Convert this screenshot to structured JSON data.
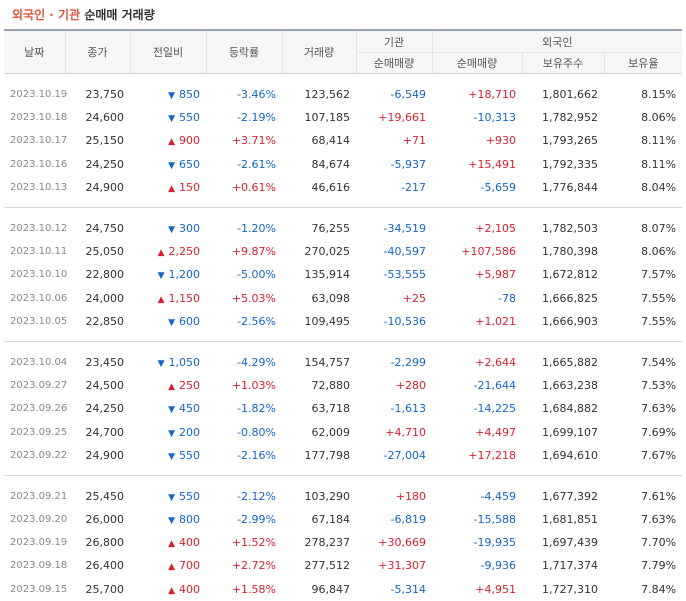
{
  "title": {
    "highlight": "외국인 · 기관",
    "rest": "순매매 거래량"
  },
  "columns": {
    "date": "날짜",
    "close": "종가",
    "change": "전일비",
    "rate": "등락률",
    "volume": "거래량",
    "institution": "기관",
    "foreign": "외국인",
    "inst_net": "순매매량",
    "foreign_net": "순매매량",
    "foreign_shares": "보유주수",
    "foreign_ratio": "보유율"
  },
  "colors": {
    "up": "#d8212e",
    "down": "#1366c9",
    "date": "#888888"
  },
  "groups": [
    [
      {
        "date": "2023.10.19",
        "close": "23,750",
        "dir": "down",
        "change": "850",
        "rate": "-3.46%",
        "volume": "123,562",
        "inst": "-6,549",
        "foreign": "+18,710",
        "shares": "1,801,662",
        "ratio": "8.15%"
      },
      {
        "date": "2023.10.18",
        "close": "24,600",
        "dir": "down",
        "change": "550",
        "rate": "-2.19%",
        "volume": "107,185",
        "inst": "+19,661",
        "foreign": "-10,313",
        "shares": "1,782,952",
        "ratio": "8.06%"
      },
      {
        "date": "2023.10.17",
        "close": "25,150",
        "dir": "up",
        "change": "900",
        "rate": "+3.71%",
        "volume": "68,414",
        "inst": "+71",
        "foreign": "+930",
        "shares": "1,793,265",
        "ratio": "8.11%"
      },
      {
        "date": "2023.10.16",
        "close": "24,250",
        "dir": "down",
        "change": "650",
        "rate": "-2.61%",
        "volume": "84,674",
        "inst": "-5,937",
        "foreign": "+15,491",
        "shares": "1,792,335",
        "ratio": "8.11%"
      },
      {
        "date": "2023.10.13",
        "close": "24,900",
        "dir": "up",
        "change": "150",
        "rate": "+0.61%",
        "volume": "46,616",
        "inst": "-217",
        "foreign": "-5,659",
        "shares": "1,776,844",
        "ratio": "8.04%"
      }
    ],
    [
      {
        "date": "2023.10.12",
        "close": "24,750",
        "dir": "down",
        "change": "300",
        "rate": "-1.20%",
        "volume": "76,255",
        "inst": "-34,519",
        "foreign": "+2,105",
        "shares": "1,782,503",
        "ratio": "8.07%"
      },
      {
        "date": "2023.10.11",
        "close": "25,050",
        "dir": "up",
        "change": "2,250",
        "rate": "+9.87%",
        "volume": "270,025",
        "inst": "-40,597",
        "foreign": "+107,586",
        "shares": "1,780,398",
        "ratio": "8.06%"
      },
      {
        "date": "2023.10.10",
        "close": "22,800",
        "dir": "down",
        "change": "1,200",
        "rate": "-5.00%",
        "volume": "135,914",
        "inst": "-53,555",
        "foreign": "+5,987",
        "shares": "1,672,812",
        "ratio": "7.57%"
      },
      {
        "date": "2023.10.06",
        "close": "24,000",
        "dir": "up",
        "change": "1,150",
        "rate": "+5.03%",
        "volume": "63,098",
        "inst": "+25",
        "foreign": "-78",
        "shares": "1,666,825",
        "ratio": "7.55%"
      },
      {
        "date": "2023.10.05",
        "close": "22,850",
        "dir": "down",
        "change": "600",
        "rate": "-2.56%",
        "volume": "109,495",
        "inst": "-10,536",
        "foreign": "+1,021",
        "shares": "1,666,903",
        "ratio": "7.55%"
      }
    ],
    [
      {
        "date": "2023.10.04",
        "close": "23,450",
        "dir": "down",
        "change": "1,050",
        "rate": "-4.29%",
        "volume": "154,757",
        "inst": "-2,299",
        "foreign": "+2,644",
        "shares": "1,665,882",
        "ratio": "7.54%"
      },
      {
        "date": "2023.09.27",
        "close": "24,500",
        "dir": "up",
        "change": "250",
        "rate": "+1.03%",
        "volume": "72,880",
        "inst": "+280",
        "foreign": "-21,644",
        "shares": "1,663,238",
        "ratio": "7.53%"
      },
      {
        "date": "2023.09.26",
        "close": "24,250",
        "dir": "down",
        "change": "450",
        "rate": "-1.82%",
        "volume": "63,718",
        "inst": "-1,613",
        "foreign": "-14,225",
        "shares": "1,684,882",
        "ratio": "7.63%"
      },
      {
        "date": "2023.09.25",
        "close": "24,700",
        "dir": "down",
        "change": "200",
        "rate": "-0.80%",
        "volume": "62,009",
        "inst": "+4,710",
        "foreign": "+4,497",
        "shares": "1,699,107",
        "ratio": "7.69%"
      },
      {
        "date": "2023.09.22",
        "close": "24,900",
        "dir": "down",
        "change": "550",
        "rate": "-2.16%",
        "volume": "177,798",
        "inst": "-27,004",
        "foreign": "+17,218",
        "shares": "1,694,610",
        "ratio": "7.67%"
      }
    ],
    [
      {
        "date": "2023.09.21",
        "close": "25,450",
        "dir": "down",
        "change": "550",
        "rate": "-2.12%",
        "volume": "103,290",
        "inst": "+180",
        "foreign": "-4,459",
        "shares": "1,677,392",
        "ratio": "7.61%"
      },
      {
        "date": "2023.09.20",
        "close": "26,000",
        "dir": "down",
        "change": "800",
        "rate": "-2.99%",
        "volume": "67,184",
        "inst": "-6,819",
        "foreign": "-15,588",
        "shares": "1,681,851",
        "ratio": "7.63%"
      },
      {
        "date": "2023.09.19",
        "close": "26,800",
        "dir": "up",
        "change": "400",
        "rate": "+1.52%",
        "volume": "278,237",
        "inst": "+30,669",
        "foreign": "-19,935",
        "shares": "1,697,439",
        "ratio": "7.70%"
      },
      {
        "date": "2023.09.18",
        "close": "26,400",
        "dir": "up",
        "change": "700",
        "rate": "+2.72%",
        "volume": "277,512",
        "inst": "+31,307",
        "foreign": "-9,936",
        "shares": "1,717,374",
        "ratio": "7.79%"
      },
      {
        "date": "2023.09.15",
        "close": "25,700",
        "dir": "up",
        "change": "400",
        "rate": "+1.58%",
        "volume": "96,847",
        "inst": "-5,314",
        "foreign": "+4,951",
        "shares": "1,727,310",
        "ratio": "7.84%"
      }
    ]
  ]
}
